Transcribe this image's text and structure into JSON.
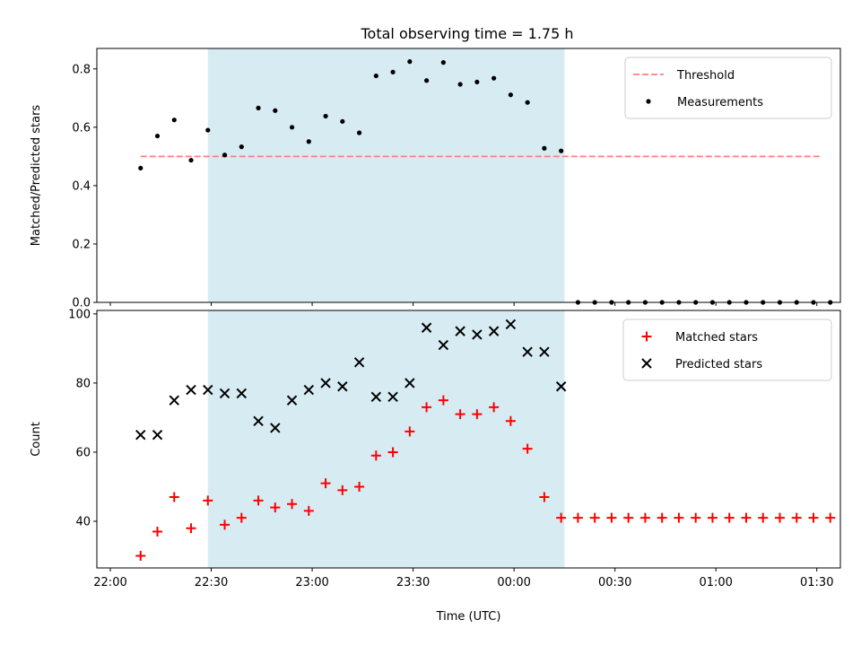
{
  "chart_data": [
    {
      "type": "scatter",
      "title": "Total observing time = 1.75 h",
      "ylabel": "Matched/Predicted stars",
      "ylim": [
        0,
        0.87
      ],
      "yticks": [
        0.0,
        0.2,
        0.4,
        0.6,
        0.8
      ],
      "ytick_labels": [
        "0.0",
        "0.2",
        "0.4",
        "0.6",
        "0.8"
      ],
      "x_unit": "minutes since 22:00 UTC",
      "xlim": [
        -4,
        217
      ],
      "shaded_span": {
        "x0": 29,
        "x1": 135,
        "color": "#add8e6"
      },
      "threshold": {
        "name": "Threshold",
        "value": 0.5,
        "x0": 9,
        "x1": 211,
        "color": "#ff7f7f"
      },
      "legend_position": "upper right",
      "series": [
        {
          "name": "Measurements",
          "color": "#000000",
          "marker": "dot",
          "x": [
            9,
            14,
            19,
            24,
            29,
            34,
            39,
            44,
            49,
            54,
            59,
            64,
            69,
            74,
            79,
            84,
            89,
            94,
            99,
            104,
            109,
            114,
            119,
            124,
            129,
            134,
            139,
            144,
            149,
            154,
            159,
            164,
            169,
            174,
            179,
            184,
            189,
            194,
            199,
            204,
            209,
            214
          ],
          "y": [
            0.46,
            0.57,
            0.625,
            0.487,
            0.59,
            0.505,
            0.533,
            0.666,
            0.657,
            0.6,
            0.551,
            0.638,
            0.62,
            0.581,
            0.776,
            0.789,
            0.825,
            0.76,
            0.822,
            0.747,
            0.755,
            0.768,
            0.711,
            0.685,
            0.528,
            0.519,
            0,
            0,
            0,
            0,
            0,
            0,
            0,
            0,
            0,
            0,
            0,
            0,
            0,
            0,
            0,
            0
          ]
        }
      ]
    },
    {
      "type": "scatter",
      "xlabel": "Time (UTC)",
      "ylabel": "Count",
      "ylim": [
        26.5,
        101
      ],
      "yticks": [
        40,
        60,
        80,
        100
      ],
      "ytick_labels": [
        "40",
        "60",
        "80",
        "100"
      ],
      "x_unit": "minutes since 22:00 UTC",
      "xlim": [
        -4,
        217
      ],
      "xticks": [
        0,
        30,
        60,
        90,
        120,
        150,
        180,
        210
      ],
      "xtick_labels": [
        "22:00",
        "22:30",
        "23:00",
        "23:30",
        "00:00",
        "00:30",
        "01:00",
        "01:30"
      ],
      "shaded_span": {
        "x0": 29,
        "x1": 135,
        "color": "#add8e6"
      },
      "legend_position": "upper right",
      "series": [
        {
          "name": "Matched stars",
          "color": "#ff0000",
          "marker": "plus",
          "x": [
            9,
            14,
            19,
            24,
            29,
            34,
            39,
            44,
            49,
            54,
            59,
            64,
            69,
            74,
            79,
            84,
            89,
            94,
            99,
            104,
            109,
            114,
            119,
            124,
            129,
            134,
            139,
            144,
            149,
            154,
            159,
            164,
            169,
            174,
            179,
            184,
            189,
            194,
            199,
            204,
            209,
            214
          ],
          "y": [
            30,
            37,
            47,
            38,
            46,
            39,
            41,
            46,
            44,
            45,
            43,
            51,
            49,
            50,
            59,
            60,
            66,
            73,
            75,
            71,
            71,
            73,
            69,
            61,
            47,
            41,
            41,
            41,
            41,
            41,
            41,
            41,
            41,
            41,
            41,
            41,
            41,
            41,
            41,
            41,
            41,
            41
          ]
        },
        {
          "name": "Predicted stars",
          "color": "#000000",
          "marker": "x",
          "x": [
            9,
            14,
            19,
            24,
            29,
            34,
            39,
            44,
            49,
            54,
            59,
            64,
            69,
            74,
            79,
            84,
            89,
            94,
            99,
            104,
            109,
            114,
            119,
            124,
            129,
            134
          ],
          "y": [
            65,
            65,
            75,
            78,
            78,
            77,
            77,
            69,
            67,
            75,
            78,
            80,
            79,
            86,
            76,
            76,
            80,
            96,
            91,
            95,
            94,
            95,
            97,
            89,
            89,
            79
          ]
        }
      ]
    }
  ]
}
